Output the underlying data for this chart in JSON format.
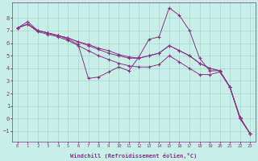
{
  "background_color": "#c8eee8",
  "grid_color": "#a8d8cc",
  "line_color": "#883388",
  "marker": "+",
  "xlabel": "Windchill (Refroidissement éolien,°C)",
  "xlim": [
    -0.5,
    23.5
  ],
  "ylim": [
    -1.8,
    9.2
  ],
  "yticks": [
    -1,
    0,
    1,
    2,
    3,
    4,
    5,
    6,
    7,
    8
  ],
  "xticks": [
    0,
    1,
    2,
    3,
    4,
    5,
    6,
    7,
    8,
    9,
    10,
    11,
    12,
    13,
    14,
    15,
    16,
    17,
    18,
    19,
    20,
    21,
    22,
    23
  ],
  "series": [
    {
      "x": [
        0,
        1,
        2,
        3,
        4,
        5,
        6,
        7,
        8,
        9,
        10,
        11,
        12,
        13,
        14,
        15,
        16,
        17,
        18,
        19,
        20,
        21,
        22,
        23
      ],
      "y": [
        7.2,
        7.7,
        7.0,
        6.8,
        6.6,
        6.3,
        5.9,
        3.2,
        3.3,
        3.7,
        4.1,
        3.8,
        4.9,
        6.3,
        6.5,
        8.8,
        8.2,
        7.0,
        4.8,
        3.8,
        3.8,
        2.5,
        0.0,
        -1.2
      ]
    },
    {
      "x": [
        0,
        1,
        2,
        3,
        4,
        5,
        6,
        7,
        8,
        9,
        10,
        11,
        12,
        13,
        14,
        15,
        16,
        17,
        18,
        19,
        20,
        21,
        22,
        23
      ],
      "y": [
        7.2,
        7.5,
        7.0,
        6.8,
        6.6,
        6.4,
        6.1,
        5.8,
        5.5,
        5.2,
        5.0,
        4.8,
        4.8,
        5.0,
        5.2,
        5.8,
        5.4,
        5.0,
        4.4,
        4.0,
        3.8,
        2.5,
        0.1,
        -1.2
      ]
    },
    {
      "x": [
        0,
        1,
        2,
        3,
        4,
        5,
        6,
        7,
        8,
        9,
        10,
        11,
        12,
        13,
        14,
        15,
        16,
        17,
        18,
        19,
        20,
        21,
        22,
        23
      ],
      "y": [
        7.2,
        7.5,
        7.0,
        6.8,
        6.6,
        6.4,
        6.1,
        5.9,
        5.6,
        5.4,
        5.1,
        4.9,
        4.8,
        5.0,
        5.2,
        5.8,
        5.4,
        5.0,
        4.4,
        4.0,
        3.8,
        2.5,
        0.1,
        -1.2
      ]
    },
    {
      "x": [
        0,
        1,
        2,
        3,
        4,
        5,
        6,
        7,
        8,
        9,
        10,
        11,
        12,
        13,
        14,
        15,
        16,
        17,
        18,
        19,
        20,
        21,
        22,
        23
      ],
      "y": [
        7.2,
        7.5,
        6.9,
        6.7,
        6.5,
        6.2,
        5.8,
        5.4,
        5.0,
        4.7,
        4.4,
        4.2,
        4.1,
        4.1,
        4.3,
        5.0,
        4.5,
        4.0,
        3.5,
        3.5,
        3.7,
        2.5,
        0.0,
        -1.2
      ]
    }
  ]
}
